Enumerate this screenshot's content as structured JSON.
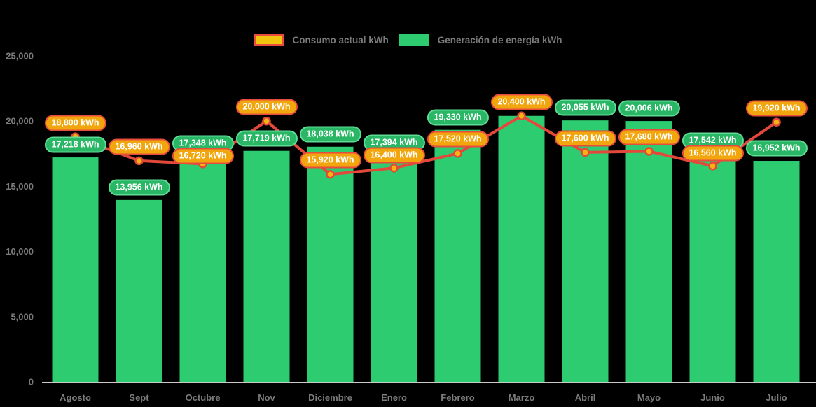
{
  "legend": {
    "consumption_label": "Consumo actual kWh",
    "generation_label": "Generación de energía kWh"
  },
  "chart_data": {
    "type": "combo-bar-line",
    "title": "",
    "xlabel": "",
    "ylabel": "",
    "ylim": [
      0,
      25000
    ],
    "grid": false,
    "legend_position": "top",
    "categories": [
      "Agosto",
      "Sept",
      "Octubre",
      "Nov",
      "Diciembre",
      "Enero",
      "Febrero",
      "Marzo",
      "Abril",
      "Mayo",
      "Junio",
      "Julio"
    ],
    "yticks": [
      {
        "value": 0,
        "label": "0"
      },
      {
        "value": 5000,
        "label": "5,000"
      },
      {
        "value": 10000,
        "label": "10,000"
      },
      {
        "value": 15000,
        "label": "15,000"
      },
      {
        "value": 20000,
        "label": "20,000"
      },
      {
        "value": 25000,
        "label": "25,000"
      }
    ],
    "series": [
      {
        "name": "Consumo actual kWh",
        "type": "line",
        "color": "#e2493b",
        "marker_fill": "#f5b40e",
        "values": [
          18800,
          16960,
          16720,
          20000,
          15920,
          16400,
          17520,
          20400,
          17600,
          17680,
          16560,
          19920
        ],
        "labels": [
          "18,800 kWh",
          "16,960 kWh",
          "16,720 kWh",
          "20,000 kWh",
          "15,920 kWh",
          "16,400 kWh",
          "17,520 kWh",
          "20,400 kWh",
          "17,600 kWh",
          "17,680 kWh",
          "16,560 kWh",
          "19,920 kWh"
        ]
      },
      {
        "name": "Generación de energía kWh",
        "type": "bar",
        "color": "#2ecc71",
        "values": [
          17218,
          13956,
          17348,
          17719,
          18038,
          17394,
          19330,
          20400,
          20055,
          20006,
          17542,
          16952
        ],
        "labels": [
          "17,218 kWh",
          "13,956 kWh",
          "17,348 kWh",
          "17,719 kWh",
          "18,038 kWh",
          "17,394 kWh",
          "19,330 kWh",
          null,
          "20,055 kWh",
          "20,006 kWh",
          "17,542 kWh",
          "16,952 kWh"
        ]
      }
    ],
    "colors": {
      "bar_green": "#2ecc71",
      "line_red": "#e2493b",
      "pill_green_bg": "#29b765",
      "pill_green_border": "#5fdd96",
      "pill_orange_bg": "#f2a60d",
      "pill_orange_border": "#e74c3c",
      "axis_text": "#7b7b7b",
      "axis_line": "#c9c9c9",
      "background": "#000000"
    }
  }
}
